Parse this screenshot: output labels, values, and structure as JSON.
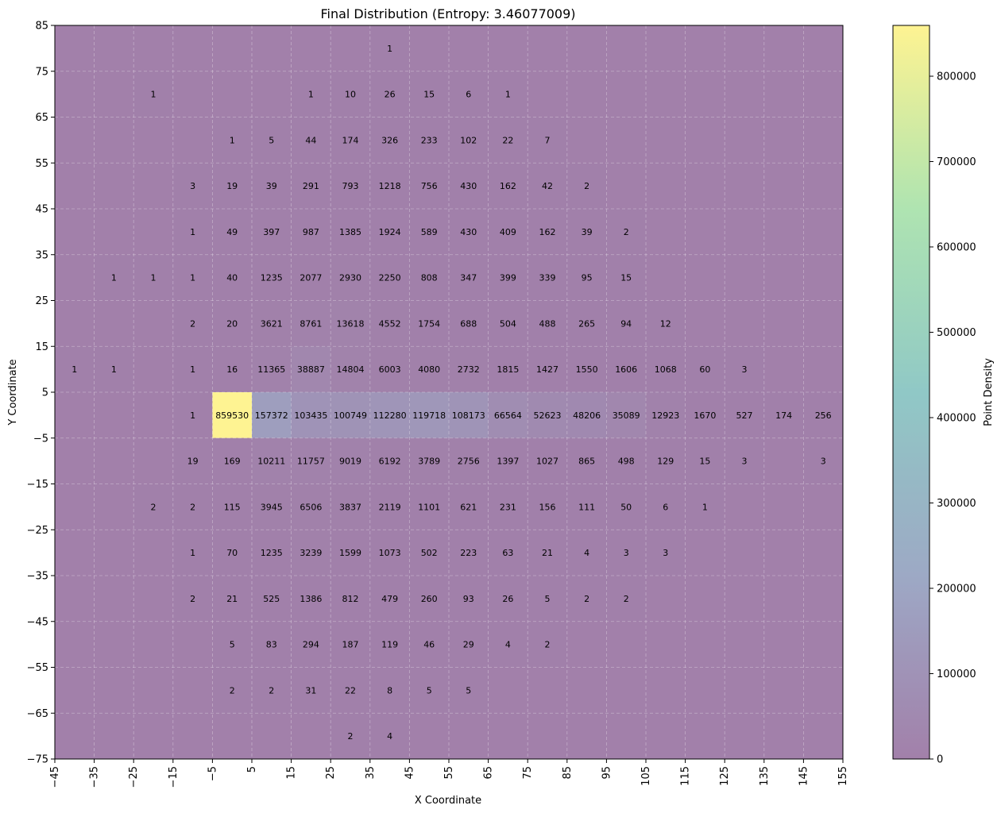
{
  "chart_data": {
    "type": "heatmap",
    "title": "Final Distribution (Entropy: 3.46077009)",
    "xlabel": "X Coordinate",
    "ylabel": "Y Coordinate",
    "colorbar_label": "Point Density",
    "xlim": [
      -45,
      155
    ],
    "ylim": [
      -75,
      85
    ],
    "bin_size": 10,
    "x_ticks": [
      -45,
      -35,
      -25,
      -15,
      -5,
      5,
      15,
      25,
      35,
      45,
      55,
      65,
      75,
      85,
      95,
      105,
      115,
      125,
      135,
      145,
      155
    ],
    "y_ticks": [
      -75,
      -65,
      -55,
      -45,
      -35,
      -25,
      -15,
      -5,
      5,
      15,
      25,
      35,
      45,
      55,
      65,
      75,
      85
    ],
    "colorbar_ticks": [
      0,
      100000,
      200000,
      300000,
      400000,
      500000,
      600000,
      700000,
      800000
    ],
    "color_max": 859530,
    "colormap": [
      "#440154",
      "#3b528b",
      "#21918c",
      "#5ec962",
      "#fde725"
    ],
    "alpha": 0.5,
    "grid": true,
    "cells": [
      {
        "x": 40,
        "y": 80,
        "v": 1
      },
      {
        "x": -20,
        "y": 70,
        "v": 1
      },
      {
        "x": 20,
        "y": 70,
        "v": 1
      },
      {
        "x": 30,
        "y": 70,
        "v": 10
      },
      {
        "x": 40,
        "y": 70,
        "v": 26
      },
      {
        "x": 50,
        "y": 70,
        "v": 15
      },
      {
        "x": 60,
        "y": 70,
        "v": 6
      },
      {
        "x": 70,
        "y": 70,
        "v": 1
      },
      {
        "x": 0,
        "y": 60,
        "v": 1
      },
      {
        "x": 10,
        "y": 60,
        "v": 5
      },
      {
        "x": 20,
        "y": 60,
        "v": 44
      },
      {
        "x": 30,
        "y": 60,
        "v": 174
      },
      {
        "x": 40,
        "y": 60,
        "v": 326
      },
      {
        "x": 50,
        "y": 60,
        "v": 233
      },
      {
        "x": 60,
        "y": 60,
        "v": 102
      },
      {
        "x": 70,
        "y": 60,
        "v": 22
      },
      {
        "x": 80,
        "y": 60,
        "v": 7
      },
      {
        "x": -10,
        "y": 50,
        "v": 3
      },
      {
        "x": 0,
        "y": 50,
        "v": 19
      },
      {
        "x": 10,
        "y": 50,
        "v": 39
      },
      {
        "x": 20,
        "y": 50,
        "v": 291
      },
      {
        "x": 30,
        "y": 50,
        "v": 793
      },
      {
        "x": 40,
        "y": 50,
        "v": 1218
      },
      {
        "x": 50,
        "y": 50,
        "v": 756
      },
      {
        "x": 60,
        "y": 50,
        "v": 430
      },
      {
        "x": 70,
        "y": 50,
        "v": 162
      },
      {
        "x": 80,
        "y": 50,
        "v": 42
      },
      {
        "x": 90,
        "y": 50,
        "v": 2
      },
      {
        "x": -10,
        "y": 40,
        "v": 1
      },
      {
        "x": 0,
        "y": 40,
        "v": 49
      },
      {
        "x": 10,
        "y": 40,
        "v": 397
      },
      {
        "x": 20,
        "y": 40,
        "v": 987
      },
      {
        "x": 30,
        "y": 40,
        "v": 1385
      },
      {
        "x": 40,
        "y": 40,
        "v": 1924
      },
      {
        "x": 50,
        "y": 40,
        "v": 589
      },
      {
        "x": 60,
        "y": 40,
        "v": 430
      },
      {
        "x": 70,
        "y": 40,
        "v": 409
      },
      {
        "x": 80,
        "y": 40,
        "v": 162
      },
      {
        "x": 90,
        "y": 40,
        "v": 39
      },
      {
        "x": 100,
        "y": 40,
        "v": 2
      },
      {
        "x": -30,
        "y": 30,
        "v": 1
      },
      {
        "x": -20,
        "y": 30,
        "v": 1
      },
      {
        "x": -10,
        "y": 30,
        "v": 1
      },
      {
        "x": 0,
        "y": 30,
        "v": 40
      },
      {
        "x": 10,
        "y": 30,
        "v": 1235
      },
      {
        "x": 20,
        "y": 30,
        "v": 2077
      },
      {
        "x": 30,
        "y": 30,
        "v": 2930
      },
      {
        "x": 40,
        "y": 30,
        "v": 2250
      },
      {
        "x": 50,
        "y": 30,
        "v": 808
      },
      {
        "x": 60,
        "y": 30,
        "v": 347
      },
      {
        "x": 70,
        "y": 30,
        "v": 399
      },
      {
        "x": 80,
        "y": 30,
        "v": 339
      },
      {
        "x": 90,
        "y": 30,
        "v": 95
      },
      {
        "x": 100,
        "y": 30,
        "v": 15
      },
      {
        "x": -10,
        "y": 20,
        "v": 2
      },
      {
        "x": 0,
        "y": 20,
        "v": 20
      },
      {
        "x": 10,
        "y": 20,
        "v": 3621
      },
      {
        "x": 20,
        "y": 20,
        "v": 8761
      },
      {
        "x": 30,
        "y": 20,
        "v": 13618
      },
      {
        "x": 40,
        "y": 20,
        "v": 4552
      },
      {
        "x": 50,
        "y": 20,
        "v": 1754
      },
      {
        "x": 60,
        "y": 20,
        "v": 688
      },
      {
        "x": 70,
        "y": 20,
        "v": 504
      },
      {
        "x": 80,
        "y": 20,
        "v": 488
      },
      {
        "x": 90,
        "y": 20,
        "v": 265
      },
      {
        "x": 100,
        "y": 20,
        "v": 94
      },
      {
        "x": 110,
        "y": 20,
        "v": 12
      },
      {
        "x": -40,
        "y": 10,
        "v": 1
      },
      {
        "x": -30,
        "y": 10,
        "v": 1
      },
      {
        "x": -10,
        "y": 10,
        "v": 1
      },
      {
        "x": 0,
        "y": 10,
        "v": 16
      },
      {
        "x": 10,
        "y": 10,
        "v": 11365
      },
      {
        "x": 20,
        "y": 10,
        "v": 38887
      },
      {
        "x": 30,
        "y": 10,
        "v": 14804
      },
      {
        "x": 40,
        "y": 10,
        "v": 6003
      },
      {
        "x": 50,
        "y": 10,
        "v": 4080
      },
      {
        "x": 60,
        "y": 10,
        "v": 2732
      },
      {
        "x": 70,
        "y": 10,
        "v": 1815
      },
      {
        "x": 80,
        "y": 10,
        "v": 1427
      },
      {
        "x": 90,
        "y": 10,
        "v": 1550
      },
      {
        "x": 100,
        "y": 10,
        "v": 1606
      },
      {
        "x": 110,
        "y": 10,
        "v": 1068
      },
      {
        "x": 120,
        "y": 10,
        "v": 60
      },
      {
        "x": 130,
        "y": 10,
        "v": 3
      },
      {
        "x": -10,
        "y": 0,
        "v": 1
      },
      {
        "x": 0,
        "y": 0,
        "v": 859530
      },
      {
        "x": 10,
        "y": 0,
        "v": 157372
      },
      {
        "x": 20,
        "y": 0,
        "v": 103435
      },
      {
        "x": 30,
        "y": 0,
        "v": 100749
      },
      {
        "x": 40,
        "y": 0,
        "v": 112280
      },
      {
        "x": 50,
        "y": 0,
        "v": 119718
      },
      {
        "x": 60,
        "y": 0,
        "v": 108173
      },
      {
        "x": 70,
        "y": 0,
        "v": 66564
      },
      {
        "x": 80,
        "y": 0,
        "v": 52623
      },
      {
        "x": 90,
        "y": 0,
        "v": 48206
      },
      {
        "x": 100,
        "y": 0,
        "v": 35089
      },
      {
        "x": 110,
        "y": 0,
        "v": 12923
      },
      {
        "x": 120,
        "y": 0,
        "v": 1670
      },
      {
        "x": 130,
        "y": 0,
        "v": 527
      },
      {
        "x": 140,
        "y": 0,
        "v": 174
      },
      {
        "x": 150,
        "y": 0,
        "v": 256
      },
      {
        "x": -10,
        "y": -10,
        "v": 19
      },
      {
        "x": 0,
        "y": -10,
        "v": 169
      },
      {
        "x": 10,
        "y": -10,
        "v": 10211
      },
      {
        "x": 20,
        "y": -10,
        "v": 11757
      },
      {
        "x": 30,
        "y": -10,
        "v": 9019
      },
      {
        "x": 40,
        "y": -10,
        "v": 6192
      },
      {
        "x": 50,
        "y": -10,
        "v": 3789
      },
      {
        "x": 60,
        "y": -10,
        "v": 2756
      },
      {
        "x": 70,
        "y": -10,
        "v": 1397
      },
      {
        "x": 80,
        "y": -10,
        "v": 1027
      },
      {
        "x": 90,
        "y": -10,
        "v": 865
      },
      {
        "x": 100,
        "y": -10,
        "v": 498
      },
      {
        "x": 110,
        "y": -10,
        "v": 129
      },
      {
        "x": 120,
        "y": -10,
        "v": 15
      },
      {
        "x": 130,
        "y": -10,
        "v": 3
      },
      {
        "x": 150,
        "y": -10,
        "v": 3
      },
      {
        "x": -20,
        "y": -20,
        "v": 2
      },
      {
        "x": -10,
        "y": -20,
        "v": 2
      },
      {
        "x": 0,
        "y": -20,
        "v": 115
      },
      {
        "x": 10,
        "y": -20,
        "v": 3945
      },
      {
        "x": 20,
        "y": -20,
        "v": 6506
      },
      {
        "x": 30,
        "y": -20,
        "v": 3837
      },
      {
        "x": 40,
        "y": -20,
        "v": 2119
      },
      {
        "x": 50,
        "y": -20,
        "v": 1101
      },
      {
        "x": 60,
        "y": -20,
        "v": 621
      },
      {
        "x": 70,
        "y": -20,
        "v": 231
      },
      {
        "x": 80,
        "y": -20,
        "v": 156
      },
      {
        "x": 90,
        "y": -20,
        "v": 111
      },
      {
        "x": 100,
        "y": -20,
        "v": 50
      },
      {
        "x": 110,
        "y": -20,
        "v": 6
      },
      {
        "x": 120,
        "y": -20,
        "v": 1
      },
      {
        "x": -10,
        "y": -30,
        "v": 1
      },
      {
        "x": 0,
        "y": -30,
        "v": 70
      },
      {
        "x": 10,
        "y": -30,
        "v": 1235
      },
      {
        "x": 20,
        "y": -30,
        "v": 3239
      },
      {
        "x": 30,
        "y": -30,
        "v": 1599
      },
      {
        "x": 40,
        "y": -30,
        "v": 1073
      },
      {
        "x": 50,
        "y": -30,
        "v": 502
      },
      {
        "x": 60,
        "y": -30,
        "v": 223
      },
      {
        "x": 70,
        "y": -30,
        "v": 63
      },
      {
        "x": 80,
        "y": -30,
        "v": 21
      },
      {
        "x": 90,
        "y": -30,
        "v": 4
      },
      {
        "x": 100,
        "y": -30,
        "v": 3
      },
      {
        "x": 110,
        "y": -30,
        "v": 3
      },
      {
        "x": -10,
        "y": -40,
        "v": 2
      },
      {
        "x": 0,
        "y": -40,
        "v": 21
      },
      {
        "x": 10,
        "y": -40,
        "v": 525
      },
      {
        "x": 20,
        "y": -40,
        "v": 1386
      },
      {
        "x": 30,
        "y": -40,
        "v": 812
      },
      {
        "x": 40,
        "y": -40,
        "v": 479
      },
      {
        "x": 50,
        "y": -40,
        "v": 260
      },
      {
        "x": 60,
        "y": -40,
        "v": 93
      },
      {
        "x": 70,
        "y": -40,
        "v": 26
      },
      {
        "x": 80,
        "y": -40,
        "v": 5
      },
      {
        "x": 90,
        "y": -40,
        "v": 2
      },
      {
        "x": 100,
        "y": -40,
        "v": 2
      },
      {
        "x": 0,
        "y": -50,
        "v": 5
      },
      {
        "x": 10,
        "y": -50,
        "v": 83
      },
      {
        "x": 20,
        "y": -50,
        "v": 294
      },
      {
        "x": 30,
        "y": -50,
        "v": 187
      },
      {
        "x": 40,
        "y": -50,
        "v": 119
      },
      {
        "x": 50,
        "y": -50,
        "v": 46
      },
      {
        "x": 60,
        "y": -50,
        "v": 29
      },
      {
        "x": 70,
        "y": -50,
        "v": 4
      },
      {
        "x": 80,
        "y": -50,
        "v": 2
      },
      {
        "x": 0,
        "y": -60,
        "v": 2
      },
      {
        "x": 10,
        "y": -60,
        "v": 2
      },
      {
        "x": 20,
        "y": -60,
        "v": 31
      },
      {
        "x": 30,
        "y": -60,
        "v": 22
      },
      {
        "x": 40,
        "y": -60,
        "v": 8
      },
      {
        "x": 50,
        "y": -60,
        "v": 5
      },
      {
        "x": 60,
        "y": -60,
        "v": 5
      },
      {
        "x": 30,
        "y": -70,
        "v": 2
      },
      {
        "x": 40,
        "y": -70,
        "v": 4
      }
    ]
  }
}
